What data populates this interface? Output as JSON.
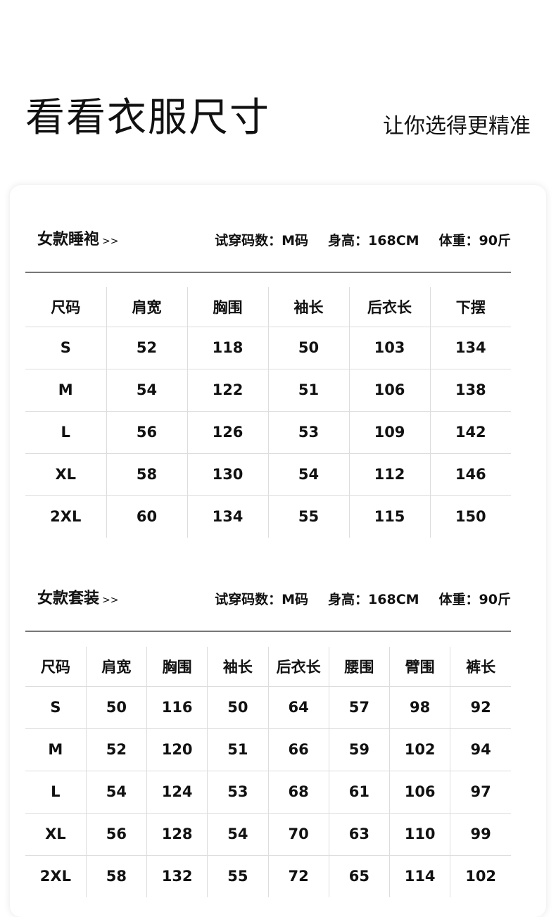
{
  "header": {
    "title": "看看衣服尺寸",
    "subtitle": "让你选得更精准"
  },
  "sections": [
    {
      "name": "女款睡袍",
      "arrow": ">>",
      "try_size": "试穿码数：M码",
      "height": "身高：168CM",
      "weight": "体重：90斤",
      "columns": [
        "尺码",
        "肩宽",
        "胸围",
        "袖长",
        "后衣长",
        "下摆"
      ],
      "rows": [
        [
          "S",
          "52",
          "118",
          "50",
          "103",
          "134"
        ],
        [
          "M",
          "54",
          "122",
          "51",
          "106",
          "138"
        ],
        [
          "L",
          "56",
          "126",
          "53",
          "109",
          "142"
        ],
        [
          "XL",
          "58",
          "130",
          "54",
          "112",
          "146"
        ],
        [
          "2XL",
          "60",
          "134",
          "55",
          "115",
          "150"
        ]
      ]
    },
    {
      "name": "女款套装",
      "arrow": ">>",
      "try_size": "试穿码数：M码",
      "height": "身高：168CM",
      "weight": "体重：90斤",
      "columns": [
        "尺码",
        "肩宽",
        "胸围",
        "袖长",
        "后衣长",
        "腰围",
        "臂围",
        "裤长"
      ],
      "rows": [
        [
          "S",
          "50",
          "116",
          "50",
          "64",
          "57",
          "98",
          "92"
        ],
        [
          "M",
          "52",
          "120",
          "51",
          "66",
          "59",
          "102",
          "94"
        ],
        [
          "L",
          "54",
          "124",
          "53",
          "68",
          "61",
          "106",
          "97"
        ],
        [
          "XL",
          "56",
          "128",
          "54",
          "70",
          "63",
          "110",
          "99"
        ],
        [
          "2XL",
          "58",
          "132",
          "55",
          "72",
          "65",
          "114",
          "102"
        ]
      ]
    }
  ]
}
